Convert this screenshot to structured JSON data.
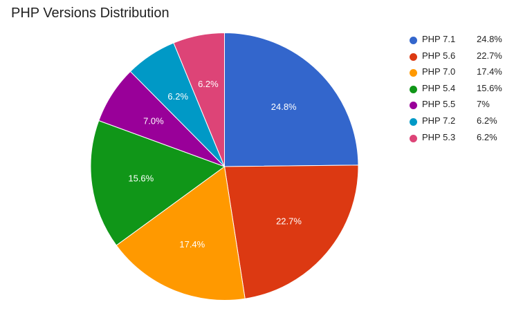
{
  "chart_data": {
    "type": "pie",
    "title": "PHP Versions Distribution",
    "legend_position": "right",
    "slices": [
      {
        "label": "PHP 7.1",
        "value": 24.8,
        "slice_label": "24.8%",
        "legend_value": "24.8%",
        "color": "#3366cc"
      },
      {
        "label": "PHP 5.6",
        "value": 22.7,
        "slice_label": "22.7%",
        "legend_value": "22.7%",
        "color": "#dc3912"
      },
      {
        "label": "PHP 7.0",
        "value": 17.4,
        "slice_label": "17.4%",
        "legend_value": "17.4%",
        "color": "#ff9900"
      },
      {
        "label": "PHP 5.4",
        "value": 15.6,
        "slice_label": "15.6%",
        "legend_value": "15.6%",
        "color": "#109618"
      },
      {
        "label": "PHP 5.5",
        "value": 7.0,
        "slice_label": "7.0%",
        "legend_value": "7%",
        "color": "#990099"
      },
      {
        "label": "PHP 7.2",
        "value": 6.2,
        "slice_label": "6.2%",
        "legend_value": "6.2%",
        "color": "#0099c6"
      },
      {
        "label": "PHP 5.3",
        "value": 6.2,
        "slice_label": "6.2%",
        "legend_value": "6.2%",
        "color": "#dd4477"
      }
    ]
  }
}
